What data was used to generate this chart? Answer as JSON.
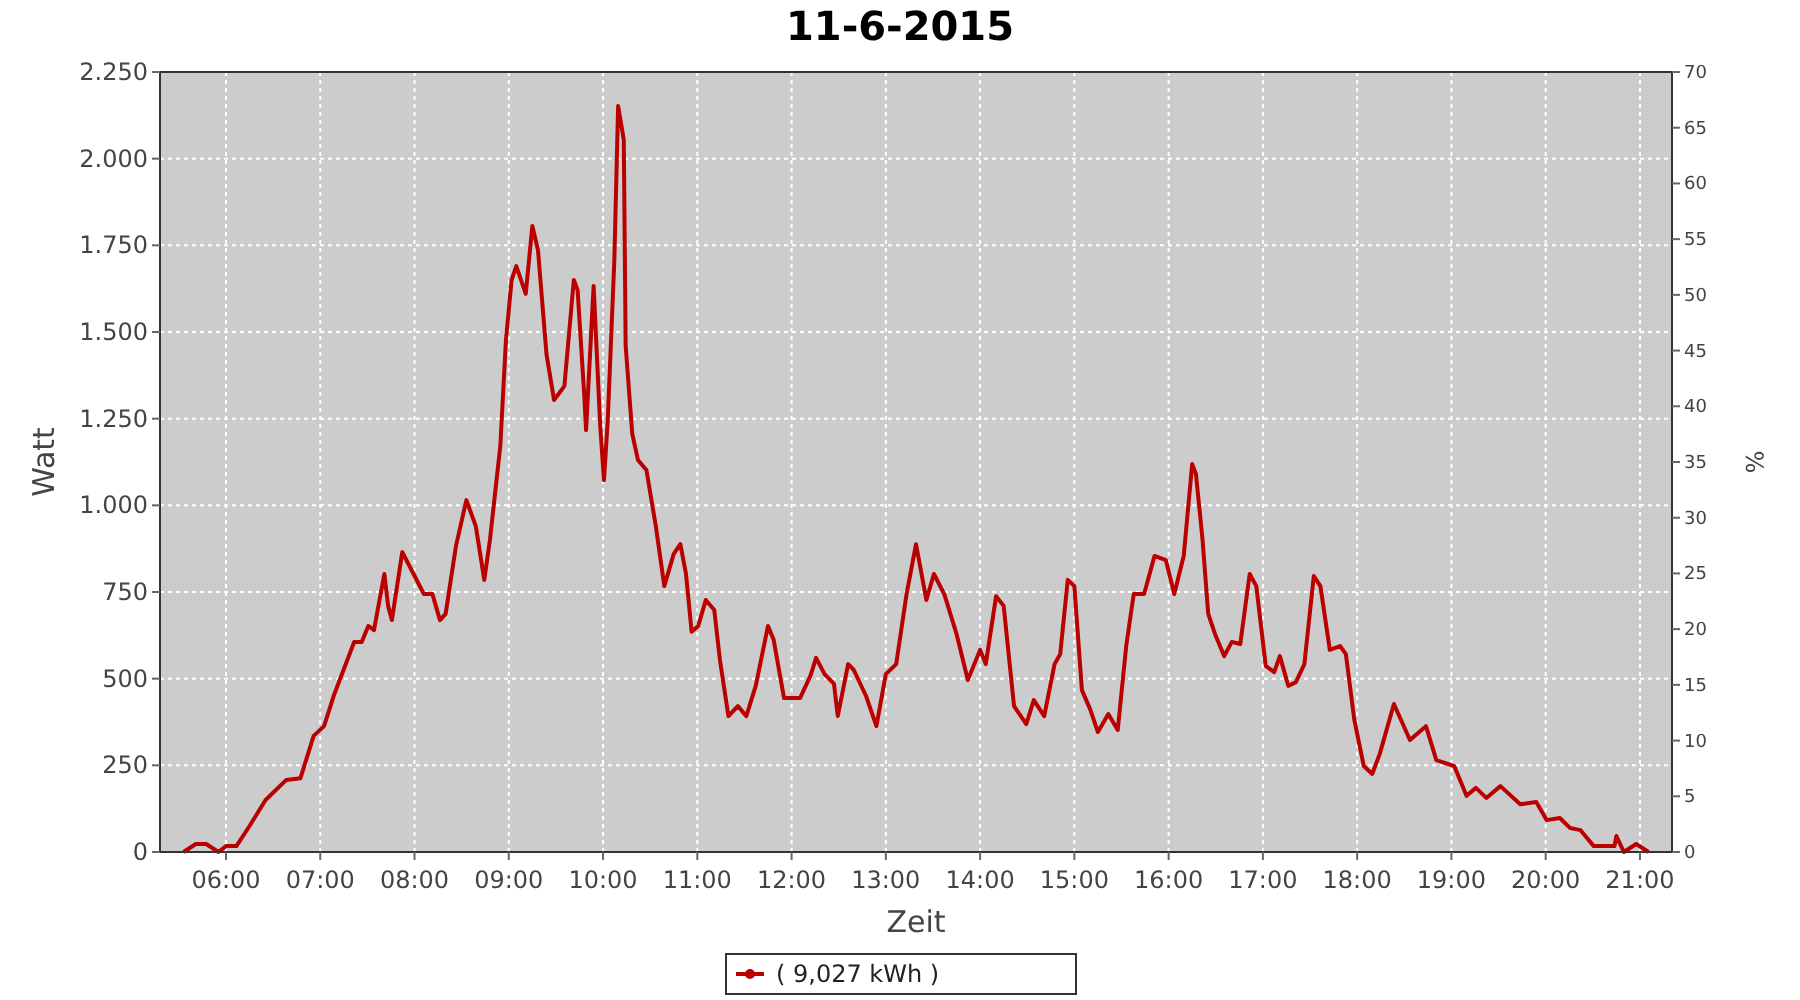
{
  "chart_data": {
    "type": "line",
    "title": "11-6-2015",
    "xlabel": "Zeit",
    "ylabel": "Watt",
    "y2label": "%",
    "xlim": [
      5.3,
      21.34
    ],
    "xticks": [
      {
        "value": 6,
        "label": "06:00"
      },
      {
        "value": 7,
        "label": "07:00"
      },
      {
        "value": 8,
        "label": "08:00"
      },
      {
        "value": 9,
        "label": "09:00"
      },
      {
        "value": 10,
        "label": "10:00"
      },
      {
        "value": 11,
        "label": "11:00"
      },
      {
        "value": 12,
        "label": "12:00"
      },
      {
        "value": 13,
        "label": "13:00"
      },
      {
        "value": 14,
        "label": "14:00"
      },
      {
        "value": 15,
        "label": "15:00"
      },
      {
        "value": 16,
        "label": "16:00"
      },
      {
        "value": 17,
        "label": "17:00"
      },
      {
        "value": 18,
        "label": "18:00"
      },
      {
        "value": 19,
        "label": "19:00"
      },
      {
        "value": 20,
        "label": "20:00"
      },
      {
        "value": 21,
        "label": "21:00"
      }
    ],
    "ylim": [
      0,
      2250
    ],
    "yticks": [
      0,
      250,
      500,
      750,
      {
        "value": 1000,
        "label": "1.000"
      },
      {
        "value": 1250,
        "label": "1.250"
      },
      {
        "value": 1500,
        "label": "1.500"
      },
      {
        "value": 1750,
        "label": "1.750"
      },
      {
        "value": 2000,
        "label": "2.000"
      },
      {
        "value": 2250,
        "label": "2.250"
      }
    ],
    "y2lim": [
      0,
      70
    ],
    "y2ticks": [
      0,
      5,
      10,
      15,
      20,
      25,
      30,
      35,
      40,
      45,
      50,
      55,
      60,
      65,
      70
    ],
    "grid": true,
    "legend": "bottom",
    "marker": "none",
    "line_style": "solid",
    "series": [
      {
        "name": "( 9,027 kWh )",
        "color": "#bb0000",
        "x": [
          5.55,
          5.68,
          5.79,
          5.92,
          6.0,
          6.11,
          6.25,
          6.42,
          6.64,
          6.79,
          6.93,
          7.04,
          7.15,
          7.36,
          7.44,
          7.51,
          7.57,
          7.68,
          7.72,
          7.76,
          7.87,
          7.99,
          8.1,
          8.19,
          8.27,
          8.33,
          8.44,
          8.55,
          8.65,
          8.74,
          8.8,
          8.91,
          8.97,
          9.03,
          9.08,
          9.18,
          9.25,
          9.31,
          9.4,
          9.48,
          9.59,
          9.69,
          9.73,
          9.8,
          9.82,
          9.9,
          9.97,
          10.01,
          10.05,
          10.12,
          10.16,
          10.22,
          10.24,
          10.31,
          10.37,
          10.46,
          10.56,
          10.65,
          10.75,
          10.82,
          10.88,
          10.94,
          11.01,
          11.09,
          11.18,
          11.24,
          11.33,
          11.43,
          11.52,
          11.62,
          11.75,
          11.81,
          11.92,
          12.09,
          12.2,
          12.26,
          12.35,
          12.45,
          12.49,
          12.6,
          12.66,
          12.79,
          12.9,
          13.0,
          13.11,
          13.22,
          13.32,
          13.43,
          13.51,
          13.62,
          13.75,
          13.87,
          14.0,
          14.06,
          14.17,
          14.25,
          14.36,
          14.49,
          14.57,
          14.68,
          14.79,
          14.85,
          14.93,
          15.0,
          15.08,
          15.17,
          15.25,
          15.36,
          15.46,
          15.55,
          15.63,
          15.74,
          15.85,
          15.97,
          16.06,
          16.16,
          16.25,
          16.29,
          16.36,
          16.42,
          16.5,
          16.59,
          16.67,
          16.76,
          16.86,
          16.93,
          17.03,
          17.12,
          17.18,
          17.27,
          17.35,
          17.44,
          17.54,
          17.61,
          17.71,
          17.82,
          17.88,
          17.97,
          18.07,
          18.16,
          18.24,
          18.39,
          18.56,
          18.73,
          18.84,
          19.03,
          19.16,
          19.26,
          19.37,
          19.52,
          19.73,
          19.9,
          20.01,
          20.15,
          20.26,
          20.37,
          20.51,
          20.73,
          20.75,
          20.83,
          20.96,
          21.09
        ],
        "values": [
          0,
          23,
          23,
          0,
          17,
          17,
          75,
          150,
          208,
          213,
          335,
          363,
          456,
          606,
          606,
          652,
          640,
          802,
          710,
          669,
          865,
          802,
          744,
          744,
          669,
          687,
          883,
          1015,
          940,
          785,
          900,
          1171,
          1477,
          1650,
          1690,
          1610,
          1806,
          1736,
          1436,
          1304,
          1344,
          1650,
          1621,
          1321,
          1217,
          1633,
          1229,
          1073,
          1246,
          1708,
          2152,
          2054,
          1460,
          1206,
          1131,
          1102,
          940,
          767,
          860,
          888,
          802,
          635,
          652,
          727,
          698,
          554,
          392,
          421,
          392,
          479,
          652,
          612,
          444,
          444,
          508,
          560,
          513,
          485,
          392,
          542,
          525,
          450,
          363,
          513,
          542,
          744,
          888,
          727,
          802,
          744,
          629,
          496,
          583,
          542,
          738,
          710,
          421,
          369,
          438,
          392,
          542,
          571,
          785,
          767,
          467,
          410,
          346,
          398,
          352,
          594,
          744,
          744,
          854,
          842,
          744,
          854,
          1119,
          1090,
          900,
          687,
          623,
          565,
          606,
          600,
          802,
          767,
          537,
          519,
          565,
          479,
          490,
          542,
          796,
          767,
          583,
          594,
          571,
          381,
          248,
          225,
          283,
          427,
          323,
          363,
          265,
          248,
          162,
          185,
          156,
          190,
          138,
          144,
          92,
          98,
          69,
          63,
          17,
          17,
          46,
          0,
          23,
          0
        ]
      }
    ]
  }
}
